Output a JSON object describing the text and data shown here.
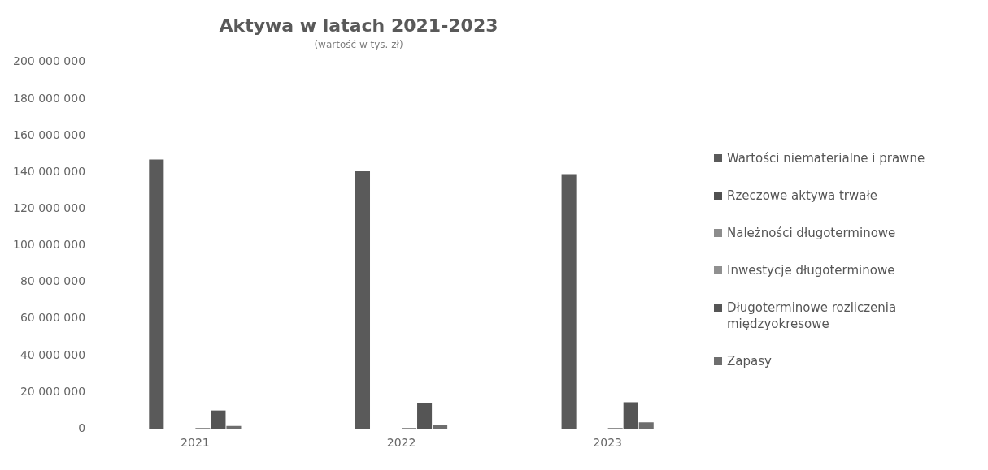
{
  "chart_data": {
    "type": "bar",
    "title": "Aktywa w latach 2021-2023",
    "subtitle": "(wartość w tys. zł)",
    "categories": [
      "2021",
      "2022",
      "2023"
    ],
    "series": [
      {
        "name": "Wartości niematerialne i prawne",
        "color": "#5a5a5a",
        "values": [
          147000000,
          140500000,
          139000000
        ]
      },
      {
        "name": "Rzeczowe aktywa trwałe",
        "color": "#505050",
        "values": [
          0,
          0,
          0
        ]
      },
      {
        "name": "Należności długoterminowe",
        "color": "#8c8c8c",
        "values": [
          0,
          0,
          0
        ]
      },
      {
        "name": "Inwestycje długoterminowe",
        "color": "#909090",
        "values": [
          500000,
          500000,
          500000
        ]
      },
      {
        "name": "Długoterminowe rozliczenia międzyokresowe",
        "color": "#555555",
        "values": [
          10000000,
          14000000,
          14500000
        ]
      },
      {
        "name": "Zapasy",
        "color": "#6e6e6e",
        "values": [
          1500000,
          2000000,
          3500000
        ]
      }
    ],
    "ylim": [
      0,
      200000000
    ],
    "yticks": [
      0,
      20000000,
      40000000,
      60000000,
      80000000,
      100000000,
      120000000,
      140000000,
      160000000,
      180000000,
      200000000
    ],
    "grid": false,
    "legend": "right"
  }
}
